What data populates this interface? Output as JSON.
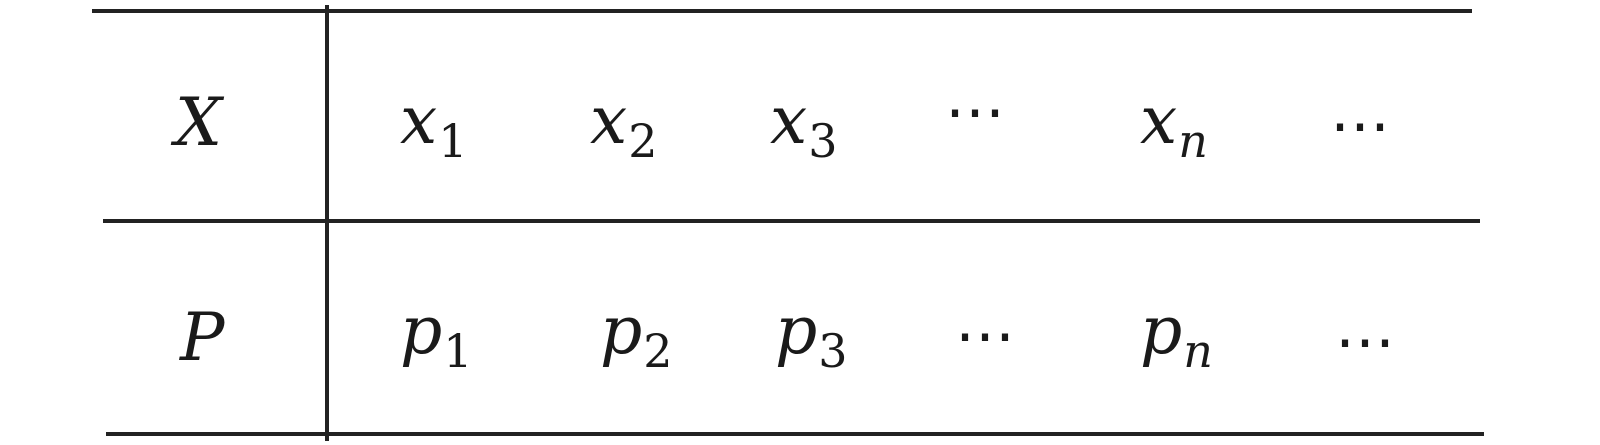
{
  "table": {
    "rows": [
      {
        "label": "X",
        "cells": [
          {
            "base": "x",
            "sub": "1"
          },
          {
            "base": "x",
            "sub": "2"
          },
          {
            "base": "x",
            "sub": "3"
          },
          {
            "text": "⋯"
          },
          {
            "base": "x",
            "sub": "n"
          },
          {
            "text": "⋯"
          }
        ]
      },
      {
        "label": "P",
        "cells": [
          {
            "base": "p",
            "sub": "1"
          },
          {
            "base": "p",
            "sub": "2"
          },
          {
            "base": "p",
            "sub": "3"
          },
          {
            "text": "⋯"
          },
          {
            "base": "p",
            "sub": "n"
          },
          {
            "text": "⋯"
          }
        ]
      }
    ]
  }
}
